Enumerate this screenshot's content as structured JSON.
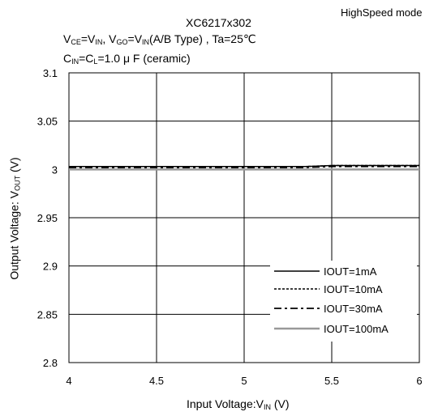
{
  "header": {
    "mode": "HighSpeed mode",
    "title": "XC6217x302",
    "cond1": {
      "v": "V",
      "ce": "CE",
      "eq1": "=V",
      "in1": "IN",
      "mid": ", V",
      "go": "GO",
      "eq2": "=V",
      "in2": "IN",
      "rest": "(A/B Type) , Ta=25℃"
    },
    "cond2": {
      "c": "C",
      "in": "IN",
      "eq": "=C",
      "l": "L",
      "rest": "=1.0 μ F (ceramic)"
    }
  },
  "axes": {
    "xlabel": {
      "main": "Input Voltage:V",
      "sub": "IN",
      "tail": " (V)"
    },
    "ylabel": {
      "main": "Output Voltage: V",
      "sub": "OUT",
      "tail": " (V)"
    }
  },
  "chart_data": {
    "type": "line",
    "title": "XC6217x302",
    "xlim": [
      4,
      6
    ],
    "ylim": [
      2.8,
      3.1
    ],
    "xticks": [
      "4",
      "4.5",
      "5",
      "5.5",
      "6"
    ],
    "yticks": [
      "3.1",
      "3.05",
      "3",
      "2.95",
      "2.9",
      "2.85",
      "2.8"
    ],
    "grid": true,
    "legend_position": "bottom-right",
    "x": [
      4,
      4.5,
      5,
      5.35,
      5.5,
      6
    ],
    "series": [
      {
        "name": "IOUT=1mA",
        "style": "solid",
        "color": "#000000",
        "values": [
          3.003,
          3.003,
          3.003,
          3.003,
          3.004,
          3.004
        ]
      },
      {
        "name": "IOUT=10mA",
        "style": "dotted",
        "color": "#000000",
        "values": [
          3.003,
          3.003,
          3.003,
          3.003,
          3.004,
          3.004
        ]
      },
      {
        "name": "IOUT=30mA",
        "style": "dashdot",
        "color": "#000000",
        "values": [
          3.002,
          3.002,
          3.002,
          3.002,
          3.003,
          3.003
        ]
      },
      {
        "name": "IOUT=100mA",
        "style": "solid",
        "color": "#999999",
        "values": [
          3.0,
          3.0,
          3.0,
          3.0,
          3.0,
          3.0
        ]
      }
    ]
  }
}
